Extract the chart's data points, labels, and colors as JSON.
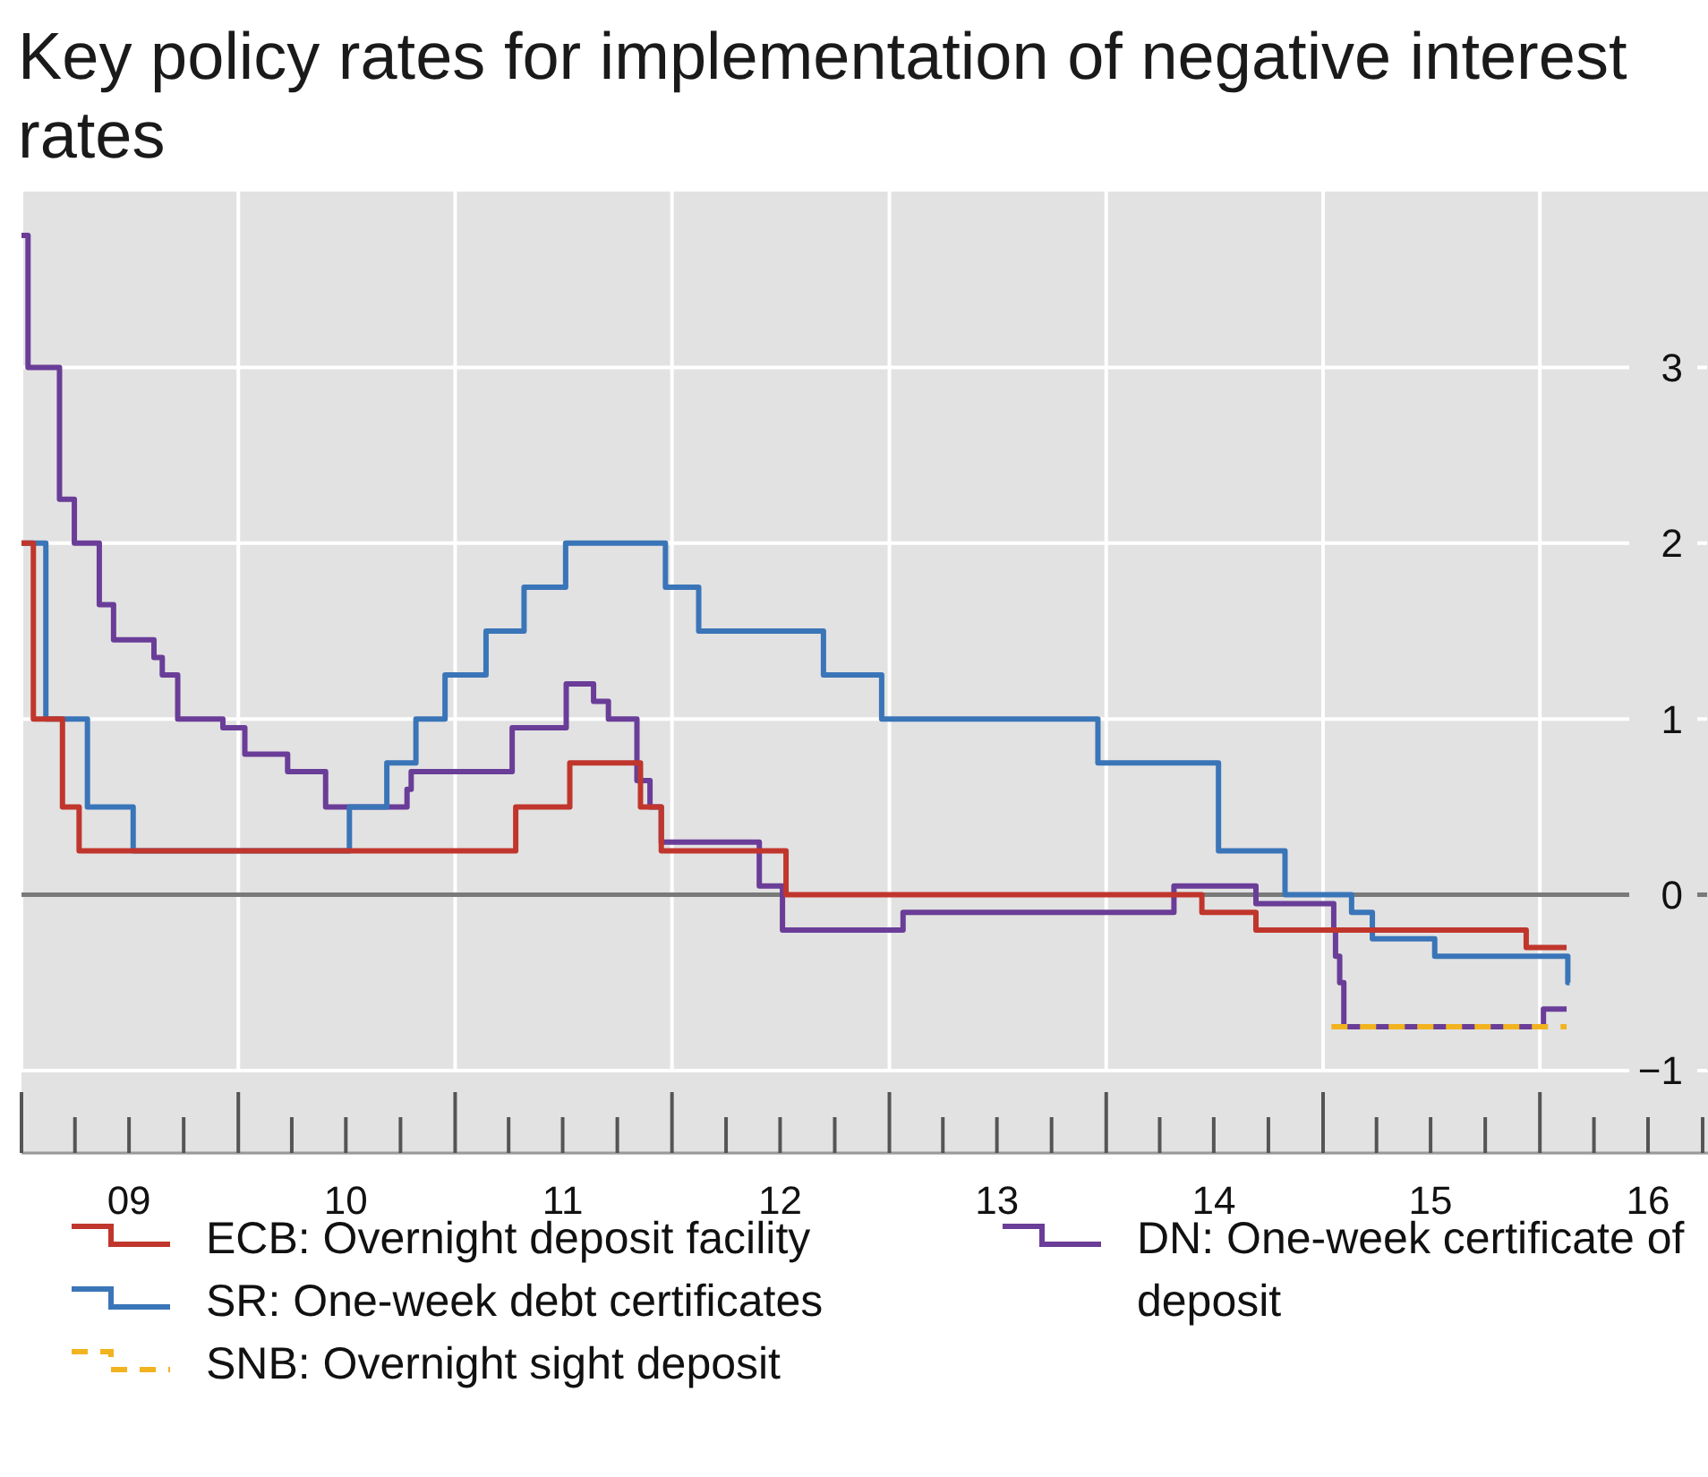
{
  "chart_data": {
    "type": "step",
    "title": "Key policy rates for implementation of negative interest rates",
    "xlim": [
      "2009-01-01",
      "2016-10-10"
    ],
    "xticks": [
      {
        "value": "2009-01-01",
        "label": null
      },
      {
        "value": "2009-07-01",
        "label": "09"
      },
      {
        "value": "2010-01-01",
        "label": null
      },
      {
        "value": "2010-07-01",
        "label": "10"
      },
      {
        "value": "2011-01-01",
        "label": null
      },
      {
        "value": "2011-07-01",
        "label": "11"
      },
      {
        "value": "2012-01-01",
        "label": null
      },
      {
        "value": "2012-07-01",
        "label": "12"
      },
      {
        "value": "2013-01-01",
        "label": null
      },
      {
        "value": "2013-07-01",
        "label": "13"
      },
      {
        "value": "2014-01-01",
        "label": null
      },
      {
        "value": "2014-07-01",
        "label": "14"
      },
      {
        "value": "2015-01-01",
        "label": null
      },
      {
        "value": "2015-07-01",
        "label": "15"
      },
      {
        "value": "2016-01-01",
        "label": null
      },
      {
        "value": "2016-07-01",
        "label": "16"
      }
    ],
    "ylim": [
      -1,
      4
    ],
    "yticks": [
      {
        "value": -1,
        "label": "−1"
      },
      0,
      1,
      2,
      3
    ],
    "grid": true,
    "legend": "bottom",
    "ref_lines": [
      {
        "axis": "y",
        "value": 0,
        "label": null,
        "color": "#7a7a7a"
      }
    ],
    "series": [
      {
        "name": "ECB: Overnight deposit facility",
        "color": "#c0362c",
        "x": [
          "2009-01-01",
          "2009-01-21",
          "2009-03-11",
          "2009-04-08",
          "2011-04-13",
          "2011-07-13",
          "2011-11-09",
          "2011-12-14",
          "2012-07-11",
          "2014-06-11",
          "2014-09-10",
          "2015-12-09",
          "2016-02-15"
        ],
        "values": [
          2,
          1,
          0.5,
          0.25,
          0.5,
          0.75,
          0.5,
          0.25,
          0,
          -0.1,
          -0.2,
          -0.3,
          -0.3
        ]
      },
      {
        "name": "SR: One-week debt certificates",
        "color": "#3a75b8",
        "x": [
          "2009-01-01",
          "2009-02-11",
          "2009-04-22",
          "2009-07-08",
          "2010-07-07",
          "2010-09-08",
          "2010-10-27",
          "2010-12-15",
          "2011-02-22",
          "2011-04-27",
          "2011-07-06",
          "2011-12-21",
          "2012-02-15",
          "2012-09-12",
          "2012-12-19",
          "2013-12-18",
          "2014-07-09",
          "2014-10-29",
          "2015-02-18",
          "2015-03-25",
          "2015-07-08",
          "2016-02-17",
          "2016-02-20"
        ],
        "values": [
          2,
          1,
          0.5,
          0.25,
          0.5,
          0.75,
          1,
          1.25,
          1.5,
          1.75,
          2,
          1.75,
          1.5,
          1.25,
          1,
          0.75,
          0.25,
          0,
          -0.1,
          -0.25,
          -0.35,
          -0.5,
          -0.5
        ]
      },
      {
        "name": "SNB: Overnight sight deposit",
        "color": "#f2b320",
        "line_style": "dashed",
        "x": [
          "2015-01-15",
          "2016-02-15"
        ],
        "values": [
          -0.75,
          -0.75
        ]
      },
      {
        "name": "DN: One-week certificate of deposit",
        "color": "#6a3d98",
        "x": [
          "2009-01-01",
          "2009-01-12",
          "2009-03-06",
          "2009-03-31",
          "2009-05-12",
          "2009-06-05",
          "2009-08-12",
          "2009-08-26",
          "2009-09-21",
          "2009-12-06",
          "2010-01-12",
          "2010-03-25",
          "2010-05-28",
          "2010-10-12",
          "2010-10-19",
          "2011-04-07",
          "2011-07-07",
          "2011-08-22",
          "2011-09-16",
          "2011-11-03",
          "2011-11-25",
          "2011-12-14",
          "2012-05-27",
          "2012-07-05",
          "2013-01-24",
          "2014-04-25",
          "2014-09-10",
          "2015-01-19",
          "2015-01-22",
          "2015-01-29",
          "2015-02-05",
          "2016-01-07",
          "2016-02-15"
        ],
        "values": [
          3.75,
          3,
          2.25,
          2,
          1.65,
          1.45,
          1.35,
          1.25,
          1,
          0.95,
          0.8,
          0.7,
          0.5,
          0.6,
          0.7,
          0.95,
          1.2,
          1.1,
          1,
          0.65,
          0.5,
          0.3,
          0.05,
          -0.2,
          -0.1,
          0.05,
          -0.05,
          -0.2,
          -0.35,
          -0.5,
          -0.75,
          -0.65,
          -0.65
        ]
      }
    ]
  }
}
